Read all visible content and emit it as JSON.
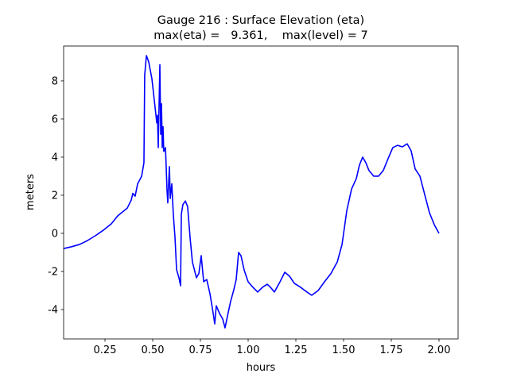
{
  "chart_data": {
    "type": "line",
    "title": "Gauge 216 : Surface Elevation (eta)",
    "subtitle": "max(eta) =   9.361,    max(level) = 7",
    "xlabel": "hours",
    "ylabel": "meters",
    "xlim": [
      0.0333,
      2.1
    ],
    "ylim": [
      -5.54,
      9.83
    ],
    "xticks": [
      0.25,
      {
        "value": 0.5,
        "label": "0.50"
      },
      0.75,
      {
        "value": 1.0,
        "label": "1.00"
      },
      1.25,
      {
        "value": 1.5,
        "label": "1.50"
      },
      1.75,
      {
        "value": 2.0,
        "label": "2.00"
      }
    ],
    "yticks": [
      -4,
      -2,
      0,
      2,
      4,
      6,
      8
    ],
    "grid": false,
    "series": [
      {
        "color": "#0000ff",
        "x": [
          0.033,
          0.075,
          0.117,
          0.158,
          0.2,
          0.242,
          0.283,
          0.317,
          0.367,
          0.3875,
          0.396,
          0.408,
          0.421,
          0.442,
          0.454,
          0.458,
          0.467,
          0.479,
          0.496,
          0.517,
          0.521,
          0.525,
          0.529,
          0.5375,
          0.542,
          0.546,
          0.55,
          0.554,
          0.558,
          0.567,
          0.575,
          0.579,
          0.5875,
          0.592,
          0.6,
          0.608,
          0.617,
          0.625,
          0.6375,
          0.646,
          0.65,
          0.658,
          0.671,
          0.683,
          0.696,
          0.708,
          0.729,
          0.742,
          0.754,
          0.767,
          0.783,
          0.8,
          0.817,
          0.825,
          0.833,
          0.85,
          0.867,
          0.879,
          0.892,
          0.908,
          0.925,
          0.9375,
          0.95,
          0.9625,
          0.979,
          1.0,
          1.025,
          1.05,
          1.075,
          1.1,
          1.117,
          1.1375,
          1.167,
          1.192,
          1.217,
          1.242,
          1.275,
          1.308,
          1.333,
          1.367,
          1.4,
          1.433,
          1.467,
          1.492,
          1.517,
          1.542,
          1.567,
          1.583,
          1.6,
          1.617,
          1.633,
          1.658,
          1.683,
          1.708,
          1.733,
          1.758,
          1.783,
          1.808,
          1.833,
          1.854,
          1.875,
          1.9,
          1.925,
          1.95,
          1.975,
          2.0
        ],
        "values": [
          -0.8,
          -0.7,
          -0.58,
          -0.38,
          -0.12,
          0.17,
          0.5,
          0.92,
          1.33,
          1.75,
          2.1,
          1.95,
          2.6,
          3.0,
          3.7,
          8.3,
          9.33,
          9.0,
          8.1,
          6.2,
          5.8,
          6.2,
          4.5,
          8.85,
          5.2,
          6.8,
          4.5,
          5.6,
          4.3,
          4.5,
          2.25,
          1.6,
          3.5,
          1.83,
          2.6,
          1.0,
          -0.25,
          -1.9,
          -2.33,
          -2.75,
          1.0,
          1.5,
          1.7,
          1.4,
          -0.25,
          -1.5,
          -2.33,
          -2.1,
          -1.17,
          -2.54,
          -2.42,
          -3.17,
          -4.2,
          -4.75,
          -3.8,
          -4.2,
          -4.5,
          -4.96,
          -4.33,
          -3.58,
          -2.96,
          -2.42,
          -1.0,
          -1.17,
          -1.92,
          -2.54,
          -2.83,
          -3.08,
          -2.83,
          -2.67,
          -2.83,
          -3.08,
          -2.54,
          -2.04,
          -2.25,
          -2.62,
          -2.83,
          -3.08,
          -3.25,
          -3.0,
          -2.54,
          -2.12,
          -1.5,
          -0.58,
          1.2,
          2.33,
          2.88,
          3.58,
          4.0,
          3.7,
          3.3,
          3.0,
          3.0,
          3.3,
          3.92,
          4.5,
          4.62,
          4.54,
          4.7,
          4.33,
          3.38,
          3.0,
          2.04,
          1.08,
          0.46,
          0.0
        ]
      }
    ]
  }
}
